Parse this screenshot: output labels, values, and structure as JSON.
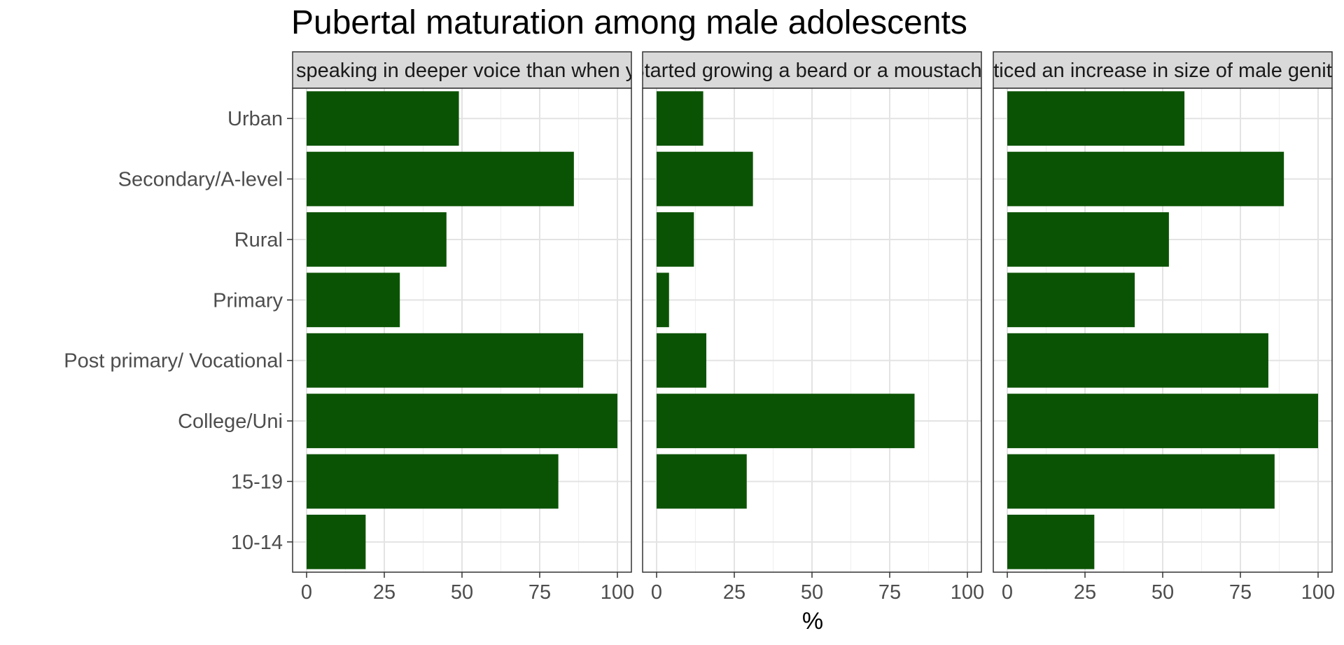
{
  "chart_data": {
    "type": "bar",
    "orientation": "horizontal",
    "title": "Pubertal maturation among male adolescents",
    "xlabel": "%",
    "ylabel": "",
    "xlim": [
      0,
      100
    ],
    "x_ticks": [
      0,
      25,
      50,
      75,
      100
    ],
    "grid": true,
    "bar_color": "#0b5304",
    "strip_color": "#d9d9d9",
    "categories": [
      "Urban",
      "Secondary/A-level",
      "Rural",
      "Primary",
      "Post primary/ Vocational",
      "College/Uni",
      "15-19",
      "10-14"
    ],
    "panels": [
      {
        "label": "Started speaking in deeper voice than when younger",
        "values": [
          49,
          86,
          45,
          30,
          89,
          100,
          81,
          19
        ]
      },
      {
        "label": "Started growing a beard or a moustache",
        "values": [
          15,
          31,
          12,
          4,
          16,
          83,
          29,
          0
        ]
      },
      {
        "label": "Noticed an increase in size of male genitals",
        "values": [
          57,
          89,
          52,
          41,
          84,
          100,
          86,
          28
        ]
      }
    ]
  }
}
